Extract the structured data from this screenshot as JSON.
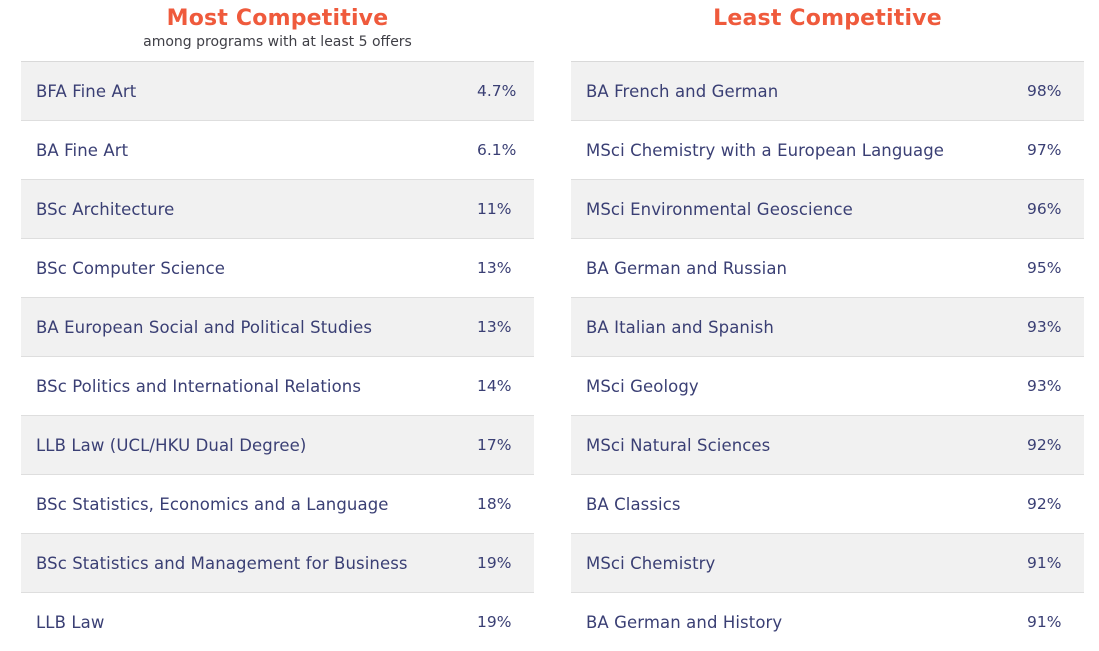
{
  "most": {
    "title": "Most Competitive",
    "subtitle": "among programs with at least 5 offers",
    "rows": [
      {
        "name": "BFA Fine Art",
        "pct": "4.7%"
      },
      {
        "name": "BA Fine Art",
        "pct": "6.1%"
      },
      {
        "name": "BSc Architecture",
        "pct": "11%"
      },
      {
        "name": "BSc Computer Science",
        "pct": "13%"
      },
      {
        "name": "BA European Social and Political Studies",
        "pct": "13%"
      },
      {
        "name": "BSc Politics and International Relations",
        "pct": "14%"
      },
      {
        "name": "LLB Law (UCL/HKU Dual Degree)",
        "pct": "17%"
      },
      {
        "name": "BSc Statistics, Economics and a Language",
        "pct": "18%"
      },
      {
        "name": "BSc Statistics and Management for Business",
        "pct": "19%"
      },
      {
        "name": "LLB Law",
        "pct": "19%"
      }
    ]
  },
  "least": {
    "title": "Least Competitive",
    "rows": [
      {
        "name": "BA French and German",
        "pct": "98%"
      },
      {
        "name": "MSci Chemistry with a European Language",
        "pct": "97%"
      },
      {
        "name": "MSci Environmental Geoscience",
        "pct": "96%"
      },
      {
        "name": "BA German and Russian",
        "pct": "95%"
      },
      {
        "name": "BA Italian and Spanish",
        "pct": "93%"
      },
      {
        "name": "MSci Geology",
        "pct": "93%"
      },
      {
        "name": "MSci Natural Sciences",
        "pct": "92%"
      },
      {
        "name": "BA Classics",
        "pct": "92%"
      },
      {
        "name": "MSci Chemistry",
        "pct": "91%"
      },
      {
        "name": "BA German and History",
        "pct": "91%"
      }
    ]
  },
  "colors": {
    "title": "#ef5a3c",
    "text": "#3a3f74",
    "row_alt": "#f1f1f1"
  }
}
